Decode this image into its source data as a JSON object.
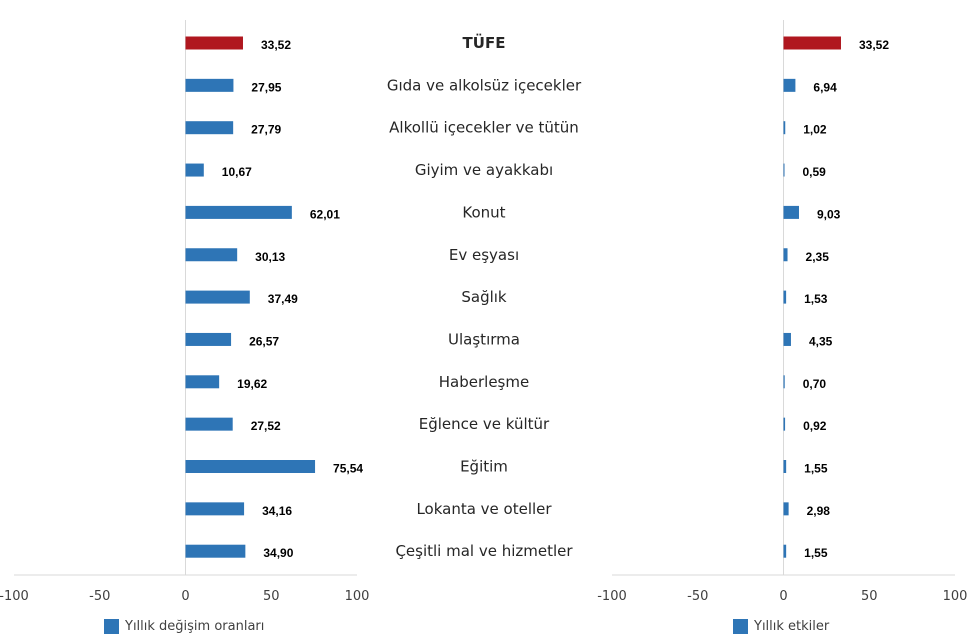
{
  "chart_data": [
    {
      "type": "bar",
      "orientation": "horizontal",
      "categories": [
        "TÜFE",
        "Gıda ve alkolsüz içecekler",
        "Alkollü içecekler ve tütün",
        "Giyim ve ayakkabı",
        "Konut",
        "Ev eşyası",
        "Sağlık",
        "Ulaştırma",
        "Haberleşme",
        "Eğlence ve kültür",
        "Eğitim",
        "Lokanta ve oteller",
        "Çeşitli mal ve hizmetler"
      ],
      "series": [
        {
          "name": "Yıllık değişim oranları",
          "values": [
            33.52,
            27.95,
            27.79,
            10.67,
            62.01,
            30.13,
            37.49,
            26.57,
            19.62,
            27.52,
            75.54,
            34.16,
            34.9
          ],
          "value_labels": [
            "33,52",
            "27,95",
            "27,79",
            "10,67",
            "62,01",
            "30,13",
            "37,49",
            "26,57",
            "19,62",
            "27,52",
            "75,54",
            "34,16",
            "34,90"
          ]
        }
      ],
      "xlim": [
        -100,
        100
      ],
      "x_ticks": [
        "-100",
        "-50",
        "0",
        "50",
        "100"
      ],
      "grid": false,
      "legend_position": "bottom"
    },
    {
      "type": "bar",
      "orientation": "horizontal",
      "categories": [
        "TÜFE",
        "Gıda ve alkolsüz içecekler",
        "Alkollü içecekler ve tütün",
        "Giyim ve ayakkabı",
        "Konut",
        "Ev eşyası",
        "Sağlık",
        "Ulaştırma",
        "Haberleşme",
        "Eğlence ve kültür",
        "Eğitim",
        "Lokanta ve oteller",
        "Çeşitli mal ve hizmetler"
      ],
      "series": [
        {
          "name": "Yıllık etkiler",
          "values": [
            33.52,
            6.94,
            1.02,
            0.59,
            9.03,
            2.35,
            1.53,
            4.35,
            0.7,
            0.92,
            1.55,
            2.98,
            1.55
          ],
          "value_labels": [
            "33,52",
            "6,94",
            "1,02",
            "0,59",
            "9,03",
            "2,35",
            "1,53",
            "4,35",
            "0,70",
            "0,92",
            "1,55",
            "2,98",
            "1,55"
          ]
        }
      ],
      "xlim": [
        -100,
        100
      ],
      "x_ticks": [
        "-100",
        "-50",
        "0",
        "50",
        "100"
      ],
      "grid": false,
      "legend_position": "bottom"
    }
  ],
  "colors": {
    "bar": "#2e75b6",
    "highlight": "#b0171f",
    "axis": "#d9d9d9"
  },
  "highlight_category": "TÜFE",
  "legend": {
    "left": "Yıllık değişim oranları",
    "right": "Yıllık etkiler"
  }
}
